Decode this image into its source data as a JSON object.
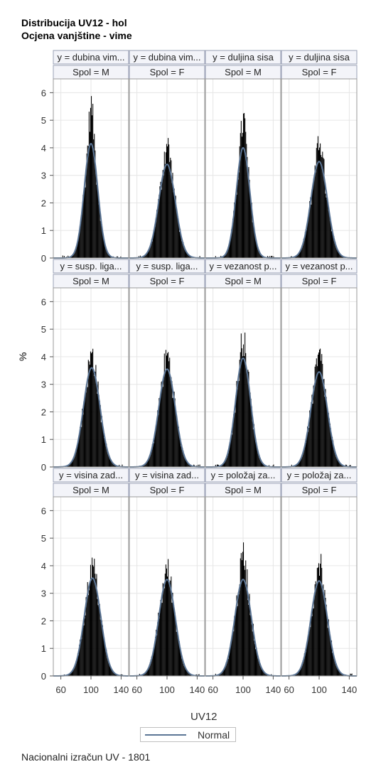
{
  "title_lines": [
    "Distribucija UV12 - hol",
    "Ocjena vanjštine - vime"
  ],
  "footnote": "Nacionalni izračun UV - 1801",
  "legend": {
    "normal_label": "Normal"
  },
  "colors": {
    "bars": "#000000",
    "normal_curve": "#5b7595",
    "grid": "#e6e6e6",
    "header_bg": "#f3f4f9",
    "header_border": "#9aa0b5"
  },
  "chart_data": {
    "type": "histogram panel",
    "ylabel": "%",
    "xlabel": "UV12",
    "xlim": [
      50,
      150
    ],
    "xticks": [
      60,
      100,
      140
    ],
    "ylim": [
      0,
      6.5
    ],
    "yticks": [
      0,
      1,
      2,
      3,
      4,
      5,
      6
    ],
    "grid": true,
    "legend_position": "bottom",
    "rows": [
      [
        {
          "y_label": "y = dubina vim...",
          "spol_label": "Spol = M",
          "peak_pct": 5.7,
          "normal_peak_pct": 4.15,
          "mean": 100,
          "sd": 9
        },
        {
          "y_label": "y = dubina vim...",
          "spol_label": "Spol = F",
          "peak_pct": 4.3,
          "normal_peak_pct": 3.4,
          "mean": 100,
          "sd": 11
        },
        {
          "y_label": "y = duljina sisa",
          "spol_label": "Spol = M",
          "peak_pct": 5.25,
          "normal_peak_pct": 4.0,
          "mean": 100,
          "sd": 9
        },
        {
          "y_label": "y = duljina sisa",
          "spol_label": "Spol = F",
          "peak_pct": 4.35,
          "normal_peak_pct": 3.5,
          "mean": 100,
          "sd": 11
        }
      ],
      [
        {
          "y_label": "y = susp. liga...",
          "spol_label": "Spol = M",
          "peak_pct": 4.2,
          "normal_peak_pct": 3.6,
          "mean": 101,
          "sd": 11
        },
        {
          "y_label": "y = susp. liga...",
          "spol_label": "Spol = F",
          "peak_pct": 4.15,
          "normal_peak_pct": 3.55,
          "mean": 100,
          "sd": 11
        },
        {
          "y_label": "y = vezanost p...",
          "spol_label": "Spol = M",
          "peak_pct": 4.8,
          "normal_peak_pct": 3.95,
          "mean": 100,
          "sd": 10
        },
        {
          "y_label": "y = vezanost p...",
          "spol_label": "Spol = F",
          "peak_pct": 4.15,
          "normal_peak_pct": 3.45,
          "mean": 100,
          "sd": 11
        }
      ],
      [
        {
          "y_label": "y = visina zad...",
          "spol_label": "Spol = M",
          "peak_pct": 4.1,
          "normal_peak_pct": 3.55,
          "mean": 102,
          "sd": 11
        },
        {
          "y_label": "y = visina zad...",
          "spol_label": "Spol = F",
          "peak_pct": 3.9,
          "normal_peak_pct": 3.5,
          "mean": 100,
          "sd": 11
        },
        {
          "y_label": "y = položaj za...",
          "spol_label": "Spol = M",
          "peak_pct": 4.6,
          "normal_peak_pct": 3.5,
          "mean": 100,
          "sd": 11
        },
        {
          "y_label": "y = položaj za...",
          "spol_label": "Spol = F",
          "peak_pct": 4.35,
          "normal_peak_pct": 3.45,
          "mean": 100,
          "sd": 11
        }
      ]
    ]
  }
}
